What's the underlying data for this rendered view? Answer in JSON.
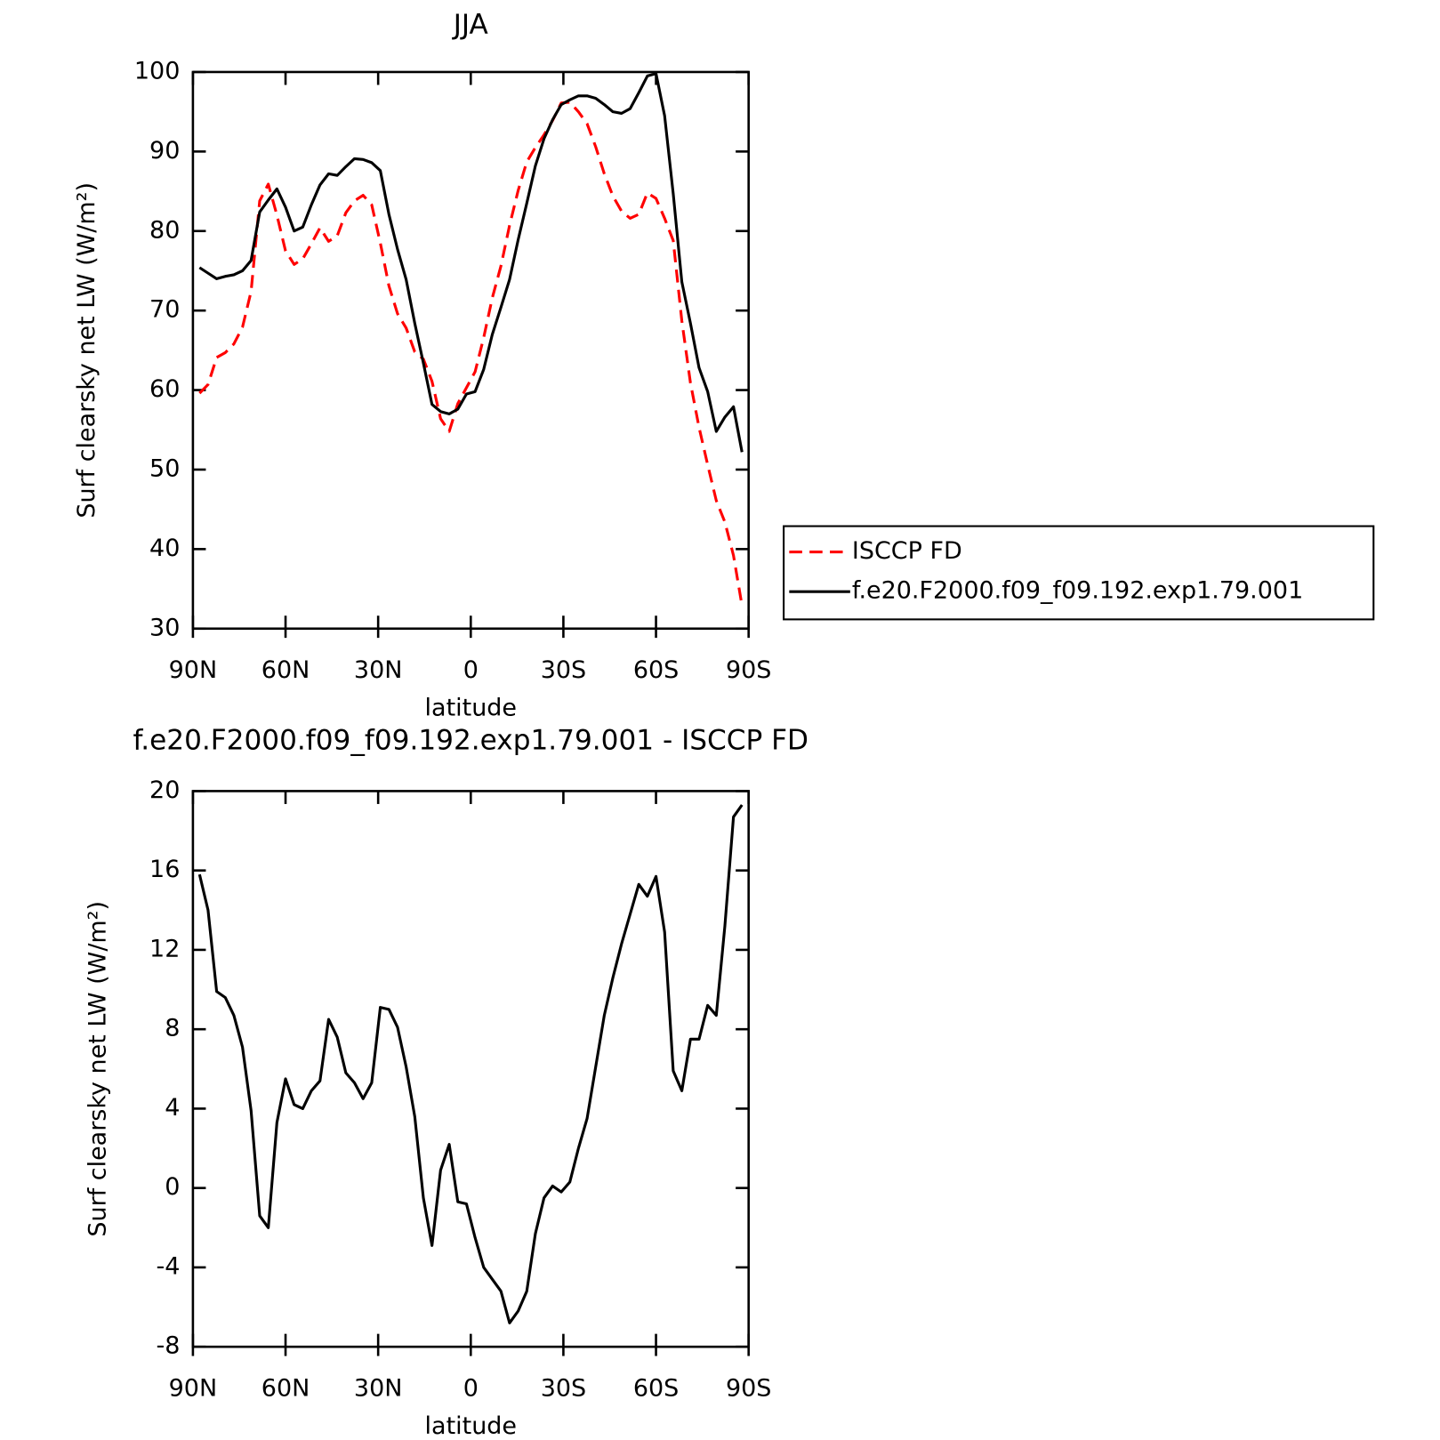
{
  "chart_data": [
    {
      "type": "line",
      "title": "JJA",
      "x_label": "latitude",
      "y_label": "Surf clearsky net LW (W/m²)",
      "x": [
        87.86,
        85.1,
        82.31,
        79.53,
        76.74,
        73.95,
        71.16,
        68.37,
        65.58,
        62.79,
        60.0,
        57.21,
        54.42,
        51.63,
        48.84,
        46.04,
        43.25,
        40.46,
        37.67,
        34.88,
        32.09,
        29.3,
        26.51,
        23.72,
        20.93,
        18.14,
        15.35,
        12.56,
        9.77,
        6.98,
        4.19,
        1.4,
        -1.4,
        -4.19,
        -6.98,
        -9.77,
        -12.56,
        -15.35,
        -18.14,
        -20.93,
        -23.72,
        -26.51,
        -29.3,
        -32.09,
        -34.88,
        -37.67,
        -40.46,
        -43.25,
        -46.04,
        -48.84,
        -51.63,
        -54.42,
        -57.21,
        -60.0,
        -62.79,
        -65.58,
        -68.37,
        -71.16,
        -73.95,
        -76.74,
        -79.53,
        -82.31,
        -85.1,
        -87.86
      ],
      "xlim": [
        90,
        -90
      ],
      "xticks": [
        {
          "value": 90,
          "label": "90N"
        },
        {
          "value": 60,
          "label": "60N"
        },
        {
          "value": 30,
          "label": "30N"
        },
        0,
        {
          "value": -30,
          "label": "30S"
        },
        {
          "value": -60,
          "label": "60S"
        },
        {
          "value": -90,
          "label": "90S"
        }
      ],
      "ylim": [
        30,
        100
      ],
      "yticks": [
        30,
        40,
        50,
        60,
        70,
        80,
        90,
        100
      ],
      "legend": "right",
      "series": [
        {
          "name": "ISCCP FD",
          "color": "#ff0000",
          "style": "dashed",
          "values": [
            59.6,
            60.7,
            64.1,
            64.7,
            65.8,
            67.9,
            72.4,
            83.8,
            85.9,
            82.0,
            77.5,
            75.8,
            76.5,
            78.4,
            80.4,
            78.7,
            79.4,
            82.3,
            83.8,
            84.5,
            83.3,
            78.5,
            73.1,
            69.6,
            67.8,
            64.8,
            63.9,
            61.1,
            56.4,
            54.8,
            58.3,
            60.3,
            62.3,
            66.6,
            71.6,
            75.6,
            80.7,
            85.1,
            88.7,
            90.5,
            92.1,
            93.9,
            96.1,
            96.2,
            95.0,
            93.5,
            90.6,
            87.2,
            84.4,
            82.5,
            81.6,
            82.1,
            84.8,
            84.1,
            81.6,
            78.8,
            68.7,
            60.9,
            55.3,
            50.6,
            46.1,
            43.4,
            39.2,
            32.9
          ]
        },
        {
          "name": "f.e20.F2000.f09_f09.192.exp1.79.001",
          "color": "#000000",
          "style": "solid",
          "values": [
            75.4,
            74.7,
            74.0,
            74.3,
            74.5,
            75.0,
            76.3,
            82.4,
            83.9,
            85.3,
            83.0,
            80.0,
            80.5,
            83.3,
            85.8,
            87.2,
            87.0,
            88.1,
            89.1,
            89.0,
            88.6,
            87.6,
            82.1,
            77.7,
            73.9,
            68.4,
            63.4,
            58.2,
            57.3,
            57.0,
            57.6,
            59.5,
            59.8,
            62.6,
            67.0,
            70.4,
            73.9,
            78.9,
            83.5,
            88.2,
            91.6,
            94.0,
            95.9,
            96.5,
            97.0,
            97.0,
            96.7,
            95.9,
            95.0,
            94.8,
            95.4,
            97.4,
            99.5,
            99.8,
            94.5,
            84.7,
            73.6,
            68.4,
            62.8,
            59.8,
            54.8,
            56.6,
            57.9,
            52.2
          ]
        }
      ]
    },
    {
      "type": "line",
      "title": "f.e20.F2000.f09_f09.192.exp1.79.001 - ISCCP FD",
      "x_label": "latitude",
      "y_label": "Surf clearsky net LW (W/m²)",
      "x": [
        87.86,
        85.1,
        82.31,
        79.53,
        76.74,
        73.95,
        71.16,
        68.37,
        65.58,
        62.79,
        60.0,
        57.21,
        54.42,
        51.63,
        48.84,
        46.04,
        43.25,
        40.46,
        37.67,
        34.88,
        32.09,
        29.3,
        26.51,
        23.72,
        20.93,
        18.14,
        15.35,
        12.56,
        9.77,
        6.98,
        4.19,
        1.4,
        -1.4,
        -4.19,
        -6.98,
        -9.77,
        -12.56,
        -15.35,
        -18.14,
        -20.93,
        -23.72,
        -26.51,
        -29.3,
        -32.09,
        -34.88,
        -37.67,
        -40.46,
        -43.25,
        -46.04,
        -48.84,
        -51.63,
        -54.42,
        -57.21,
        -60.0,
        -62.79,
        -65.58,
        -68.37,
        -71.16,
        -73.95,
        -76.74,
        -79.53,
        -82.31,
        -85.1,
        -87.86
      ],
      "xlim": [
        90,
        -90
      ],
      "xticks": [
        {
          "value": 90,
          "label": "90N"
        },
        {
          "value": 60,
          "label": "60N"
        },
        {
          "value": 30,
          "label": "30N"
        },
        0,
        {
          "value": -30,
          "label": "30S"
        },
        {
          "value": -60,
          "label": "60S"
        },
        {
          "value": -90,
          "label": "90S"
        }
      ],
      "ylim": [
        -8,
        20
      ],
      "yticks": [
        -8,
        -4,
        0,
        4,
        8,
        12,
        16,
        20
      ],
      "series": [
        {
          "color": "#000000",
          "style": "solid",
          "values": [
            15.8,
            14.0,
            9.9,
            9.6,
            8.7,
            7.1,
            3.9,
            -1.4,
            -2.0,
            3.3,
            5.5,
            4.2,
            4.0,
            4.9,
            5.4,
            8.5,
            7.6,
            5.8,
            5.3,
            4.5,
            5.3,
            9.1,
            9.0,
            8.1,
            6.1,
            3.6,
            -0.5,
            -2.9,
            0.9,
            2.2,
            -0.7,
            -0.8,
            -2.5,
            -4.0,
            -4.6,
            -5.2,
            -6.8,
            -6.2,
            -5.2,
            -2.3,
            -0.5,
            0.1,
            -0.2,
            0.3,
            2.0,
            3.5,
            6.1,
            8.7,
            10.6,
            12.3,
            13.8,
            15.3,
            14.7,
            15.7,
            12.9,
            5.9,
            4.9,
            7.5,
            7.5,
            9.2,
            8.7,
            13.2,
            18.7,
            19.3
          ]
        }
      ]
    }
  ]
}
